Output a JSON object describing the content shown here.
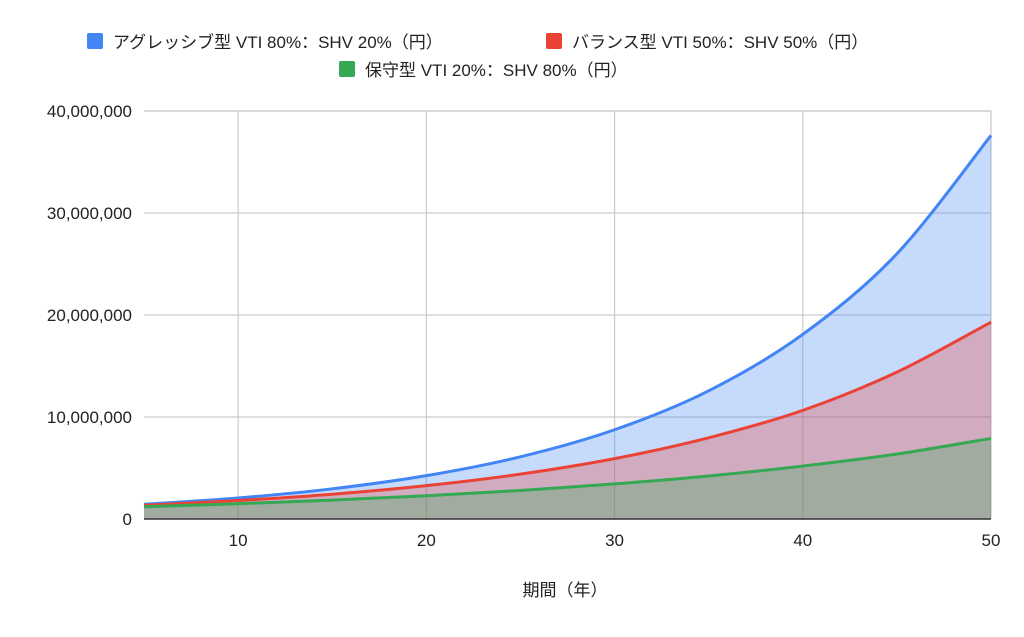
{
  "chart_data": {
    "type": "area",
    "title": "",
    "xlabel": "期間（年）",
    "ylabel": "",
    "xlim": [
      5,
      50
    ],
    "ylim": [
      0,
      40000000
    ],
    "grid": true,
    "legend_position": "top",
    "x_ticks": [
      10,
      20,
      30,
      40,
      50
    ],
    "x_tick_labels": [
      "10",
      "20",
      "30",
      "40",
      "50"
    ],
    "y_ticks": [
      0,
      10000000,
      20000000,
      30000000,
      40000000
    ],
    "y_tick_labels": [
      "0",
      "10,000,000",
      "20,000,000",
      "30,000,000",
      "40,000,000"
    ],
    "x": [
      5,
      10,
      15,
      20,
      25,
      30,
      35,
      40,
      45,
      50
    ],
    "series": [
      {
        "name": "アグレッシブ型 VTI 80%：SHV 20%（円）",
        "color": "#4285f4",
        "values": [
          1440000,
          2060000,
          2960000,
          4250000,
          6100000,
          8750000,
          12570000,
          18100000,
          26000000,
          37600000
        ]
      },
      {
        "name": "バランス型 VTI 50%：SHV 50%（円）",
        "color": "#ea4335",
        "values": [
          1340000,
          1810000,
          2430000,
          3270000,
          4400000,
          5920000,
          7960000,
          10650000,
          14400000,
          19300000
        ]
      },
      {
        "name": "保守型 VTI 20%：SHV 80%（円）",
        "color": "#34a853",
        "values": [
          1200000,
          1500000,
          1850000,
          2280000,
          2800000,
          3440000,
          4220000,
          5190000,
          6370000,
          7900000
        ]
      }
    ]
  }
}
